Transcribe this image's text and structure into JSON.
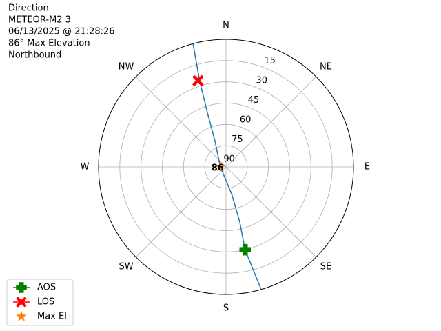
{
  "chart_data": {
    "type": "polar",
    "title_lines": [
      "Direction",
      "METEOR-M2 3",
      "06/13/2025 @ 21:28:26",
      "86° Max Elevation",
      "Northbound"
    ],
    "rlim": [
      90,
      0
    ],
    "rticks": [
      15,
      30,
      45,
      60,
      75,
      90
    ],
    "xticks": [
      {
        "value": 0,
        "label": "N"
      },
      {
        "value": 45,
        "label": "NE"
      },
      {
        "value": 90,
        "label": "E"
      },
      {
        "value": 135,
        "label": "SE"
      },
      {
        "value": 180,
        "label": "S"
      },
      {
        "value": 225,
        "label": "SW"
      },
      {
        "value": 270,
        "label": "W"
      },
      {
        "value": 315,
        "label": "NW"
      }
    ],
    "grid": true,
    "track": {
      "color": "#1f77b4",
      "az": [
        345,
        343,
        341,
        337,
        270,
        168,
        166,
        167,
        164
      ],
      "el": [
        0,
        26,
        50,
        70,
        86,
        70,
        50,
        30,
        0
      ]
    },
    "series": [
      {
        "name": "AOS",
        "color": "#008000",
        "marker": "plus",
        "az": [
          167
        ],
        "el": [
          30
        ]
      },
      {
        "name": "LOS",
        "color": "#ff0000",
        "marker": "x",
        "az": [
          342
        ],
        "el": [
          26
        ]
      },
      {
        "name": "Max El",
        "color": "#ff7f0e",
        "marker": "star",
        "az": [
          270
        ],
        "el": [
          86
        ],
        "value_labels": [
          "86"
        ]
      }
    ],
    "legend": "lower left"
  }
}
